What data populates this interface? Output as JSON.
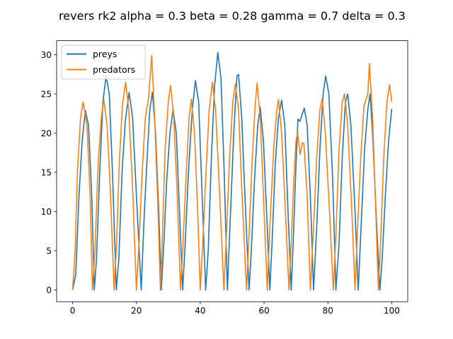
{
  "chart_data": {
    "type": "line",
    "title": "revers rk2 alpha = 0.3 beta = 0.28 gamma = 0.7 delta = 0.3",
    "xlabel": "",
    "ylabel": "",
    "xlim": [
      -5,
      105
    ],
    "ylim": [
      -1.5,
      31.8
    ],
    "xticks": [
      0,
      20,
      40,
      60,
      80,
      100
    ],
    "yticks": [
      0,
      5,
      10,
      15,
      20,
      25,
      30
    ],
    "grid": false,
    "legend_position": "top-left",
    "series": [
      {
        "name": "preys",
        "color": "#1f77b4",
        "points": [
          [
            0,
            0
          ],
          [
            1,
            2
          ],
          [
            2,
            12
          ],
          [
            3,
            19
          ],
          [
            4,
            22.9
          ],
          [
            5,
            21
          ],
          [
            6,
            12
          ],
          [
            6.8,
            0
          ],
          [
            7.5,
            4
          ],
          [
            8.5,
            15
          ],
          [
            9.5,
            24
          ],
          [
            10.5,
            27.3
          ],
          [
            11.5,
            25
          ],
          [
            12.5,
            15
          ],
          [
            13.7,
            0
          ],
          [
            14.5,
            4
          ],
          [
            15.5,
            15
          ],
          [
            16.5,
            21.5
          ],
          [
            17.7,
            25.2
          ],
          [
            18.8,
            22
          ],
          [
            20,
            12
          ],
          [
            21.5,
            0
          ],
          [
            22.5,
            10
          ],
          [
            23.5,
            18
          ],
          [
            24.2,
            23
          ],
          [
            25,
            25.2
          ],
          [
            26,
            20
          ],
          [
            27,
            10
          ],
          [
            27.8,
            0
          ],
          [
            28.6,
            6
          ],
          [
            29.5,
            14
          ],
          [
            30.5,
            20
          ],
          [
            31.5,
            23
          ],
          [
            32.5,
            20
          ],
          [
            33.5,
            10
          ],
          [
            34.5,
            0
          ],
          [
            35.3,
            6
          ],
          [
            36.3,
            15
          ],
          [
            37.5,
            23
          ],
          [
            38.5,
            26.7
          ],
          [
            39.5,
            24
          ],
          [
            40.5,
            13
          ],
          [
            41.7,
            0
          ],
          [
            42.5,
            5
          ],
          [
            43.5,
            17
          ],
          [
            44.5,
            26
          ],
          [
            45.5,
            30.3
          ],
          [
            46.5,
            27
          ],
          [
            47.5,
            15
          ],
          [
            48.5,
            0
          ],
          [
            49.5,
            10
          ],
          [
            50.5,
            20
          ],
          [
            51.5,
            27.3
          ],
          [
            52,
            27.5
          ],
          [
            53,
            22
          ],
          [
            54,
            12
          ],
          [
            55.3,
            0
          ],
          [
            56,
            5
          ],
          [
            57,
            14
          ],
          [
            58,
            21
          ],
          [
            58.8,
            23.3
          ],
          [
            59.8,
            19
          ],
          [
            61,
            8
          ],
          [
            61.8,
            0
          ],
          [
            62.5,
            6
          ],
          [
            63.5,
            16
          ],
          [
            64.5,
            22
          ],
          [
            65.5,
            24.2
          ],
          [
            66.5,
            21
          ],
          [
            67.5,
            10
          ],
          [
            68.5,
            0
          ],
          [
            69.3,
            8
          ],
          [
            70,
            16
          ],
          [
            70.6,
            21.8
          ],
          [
            71.2,
            21.5
          ],
          [
            72,
            22.5
          ],
          [
            72.6,
            23.2
          ],
          [
            73.5,
            21
          ],
          [
            74.5,
            12
          ],
          [
            75.5,
            0
          ],
          [
            76.5,
            8
          ],
          [
            77.5,
            18
          ],
          [
            78.5,
            25
          ],
          [
            79.3,
            27.3
          ],
          [
            80.3,
            25
          ],
          [
            81.5,
            14
          ],
          [
            82.5,
            0
          ],
          [
            83.5,
            6
          ],
          [
            84.5,
            17
          ],
          [
            85.5,
            24
          ],
          [
            86.2,
            25
          ],
          [
            87.2,
            21
          ],
          [
            88.5,
            10
          ],
          [
            89.5,
            0
          ],
          [
            90.5,
            9
          ],
          [
            91.5,
            18
          ],
          [
            92.5,
            23
          ],
          [
            93.2,
            25
          ],
          [
            94,
            20
          ],
          [
            95.3,
            8
          ],
          [
            96.3,
            0
          ],
          [
            97,
            4
          ],
          [
            98,
            12
          ],
          [
            99,
            19
          ],
          [
            100,
            23.1
          ]
        ]
      },
      {
        "name": "predators",
        "color": "#ff7f0e",
        "points": [
          [
            0,
            0
          ],
          [
            0.8,
            5
          ],
          [
            1.5,
            15
          ],
          [
            2.5,
            22
          ],
          [
            3.3,
            24
          ],
          [
            4.5,
            21
          ],
          [
            5.5,
            12
          ],
          [
            6.2,
            0
          ],
          [
            7,
            5
          ],
          [
            8,
            16
          ],
          [
            9,
            22
          ],
          [
            9.8,
            24.3
          ],
          [
            10.8,
            21
          ],
          [
            11.8,
            13
          ],
          [
            13,
            0
          ],
          [
            13.8,
            6
          ],
          [
            14.6,
            16
          ],
          [
            15.6,
            23.5
          ],
          [
            16.6,
            26.5
          ],
          [
            17.6,
            23
          ],
          [
            18.8,
            13
          ],
          [
            20,
            0
          ],
          [
            20.8,
            6
          ],
          [
            21.8,
            15
          ],
          [
            22.8,
            22
          ],
          [
            23.8,
            24.5
          ],
          [
            24.8,
            29.9
          ],
          [
            25.8,
            21
          ],
          [
            26.8,
            10
          ],
          [
            27.5,
            0
          ],
          [
            28,
            5
          ],
          [
            29,
            18
          ],
          [
            30,
            24
          ],
          [
            30.7,
            26.1
          ],
          [
            31.7,
            22
          ],
          [
            32.8,
            12
          ],
          [
            33.8,
            0
          ],
          [
            34.5,
            5
          ],
          [
            35.5,
            14
          ],
          [
            36.5,
            22
          ],
          [
            37.2,
            24.3
          ],
          [
            38.2,
            20
          ],
          [
            39.2,
            10
          ],
          [
            40,
            0
          ],
          [
            40.8,
            6
          ],
          [
            41.8,
            15
          ],
          [
            42.8,
            23
          ],
          [
            43.8,
            26.5
          ],
          [
            44.8,
            23
          ],
          [
            46,
            13
          ],
          [
            47.4,
            0
          ],
          [
            48.2,
            7
          ],
          [
            49.2,
            17
          ],
          [
            50.2,
            24
          ],
          [
            51,
            26.3
          ],
          [
            52,
            23
          ],
          [
            53,
            13
          ],
          [
            54.5,
            0
          ],
          [
            55.2,
            6
          ],
          [
            56.2,
            16
          ],
          [
            57.2,
            23.5
          ],
          [
            57.8,
            26.4
          ],
          [
            58.8,
            22
          ],
          [
            60,
            10
          ],
          [
            61,
            0
          ],
          [
            61.8,
            8
          ],
          [
            63,
            18
          ],
          [
            64,
            23
          ],
          [
            64.5,
            24.3
          ],
          [
            65.5,
            20
          ],
          [
            66.8,
            9
          ],
          [
            67.8,
            0
          ],
          [
            68.5,
            6
          ],
          [
            69.3,
            14
          ],
          [
            70,
            19
          ],
          [
            70.5,
            20.1
          ],
          [
            71.3,
            17.3
          ],
          [
            72,
            18.8
          ],
          [
            72.5,
            18.6
          ],
          [
            73.5,
            12
          ],
          [
            74.5,
            0
          ],
          [
            75.5,
            8
          ],
          [
            76.5,
            17
          ],
          [
            77.5,
            23
          ],
          [
            78.2,
            24.4
          ],
          [
            79.2,
            20
          ],
          [
            80.5,
            10
          ],
          [
            81.7,
            0
          ],
          [
            82.5,
            7
          ],
          [
            83.5,
            18
          ],
          [
            84.5,
            24
          ],
          [
            85.2,
            25
          ],
          [
            86.2,
            21
          ],
          [
            87.5,
            10
          ],
          [
            88.5,
            0
          ],
          [
            89.3,
            8
          ],
          [
            90.3,
            17
          ],
          [
            91.3,
            23.5
          ],
          [
            92.5,
            25
          ],
          [
            93,
            28.9
          ],
          [
            94,
            22
          ],
          [
            95,
            10
          ],
          [
            95.8,
            0
          ],
          [
            96.5,
            6
          ],
          [
            97.5,
            17
          ],
          [
            98.5,
            24
          ],
          [
            99.3,
            26.2
          ],
          [
            100,
            24
          ]
        ]
      }
    ]
  }
}
